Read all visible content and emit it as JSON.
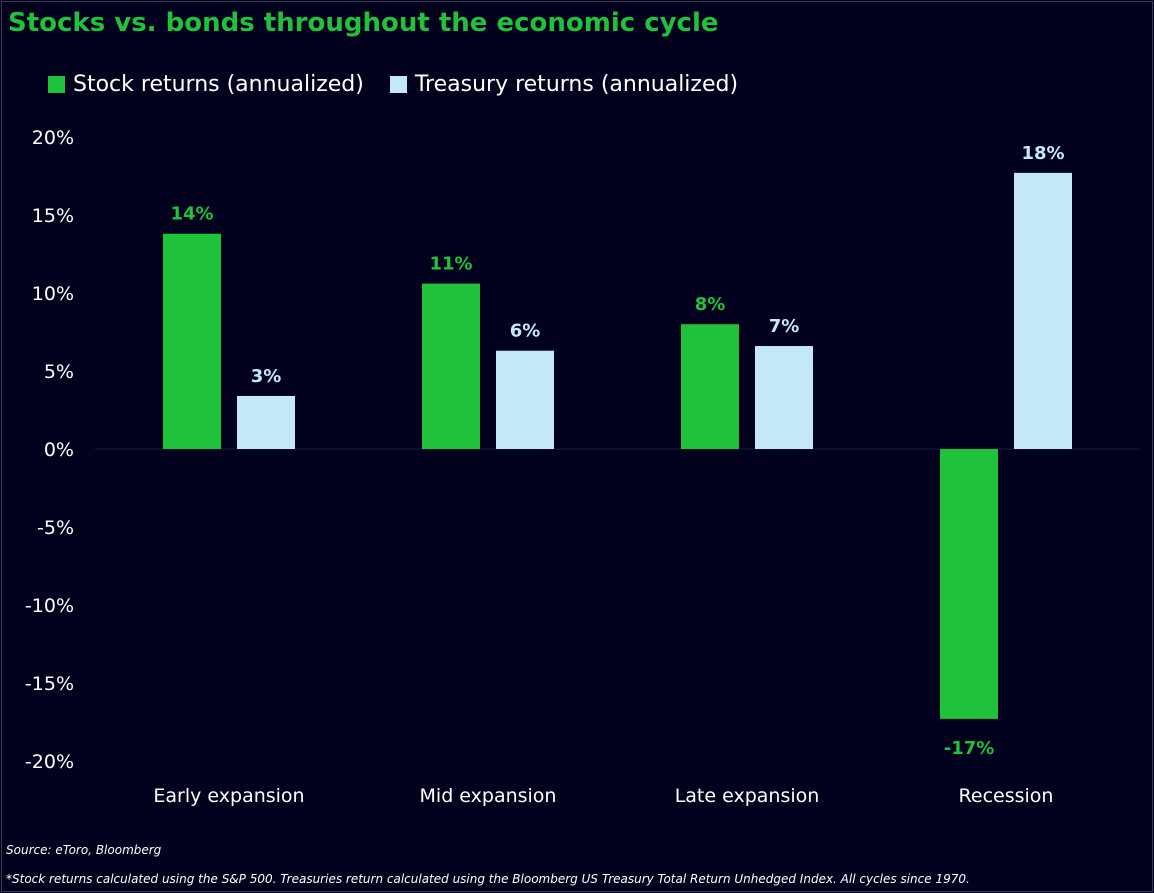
{
  "title": "Stocks vs. bonds throughout the economic cycle",
  "source": "Source: eToro, Bloomberg",
  "footnote": "*Stock returns calculated using the S&P 500. Treasuries return calculated using the Bloomberg US Treasury Total Return Unhedged Index. All cycles since 1970.",
  "colors": {
    "background": "#02021e",
    "title": "#1fc23a",
    "stock": "#1fc23a",
    "treasury": "#c5e8f9"
  },
  "chart_data": {
    "type": "bar",
    "categories": [
      "Early expansion",
      "Mid expansion",
      "Late expansion",
      "Recession"
    ],
    "series": [
      {
        "name": "Stock returns (annualized)",
        "values": [
          13.8,
          10.6,
          8.0,
          -17.3
        ],
        "labels": [
          "14%",
          "11%",
          "8%",
          "-17%"
        ]
      },
      {
        "name": "Treasury returns (annualized)",
        "values": [
          3.4,
          6.3,
          6.6,
          17.7
        ],
        "labels": [
          "3%",
          "6%",
          "7%",
          "18%"
        ]
      }
    ],
    "ylim": [
      -20,
      20
    ],
    "yticks": [
      20,
      15,
      10,
      5,
      0,
      -5,
      -10,
      -15,
      -20
    ],
    "ytick_labels": [
      "20%",
      "15%",
      "10%",
      "5%",
      "0%",
      "-5%",
      "-10%",
      "-15%",
      "-20%"
    ],
    "legend_position": "top-left",
    "grid": false
  }
}
